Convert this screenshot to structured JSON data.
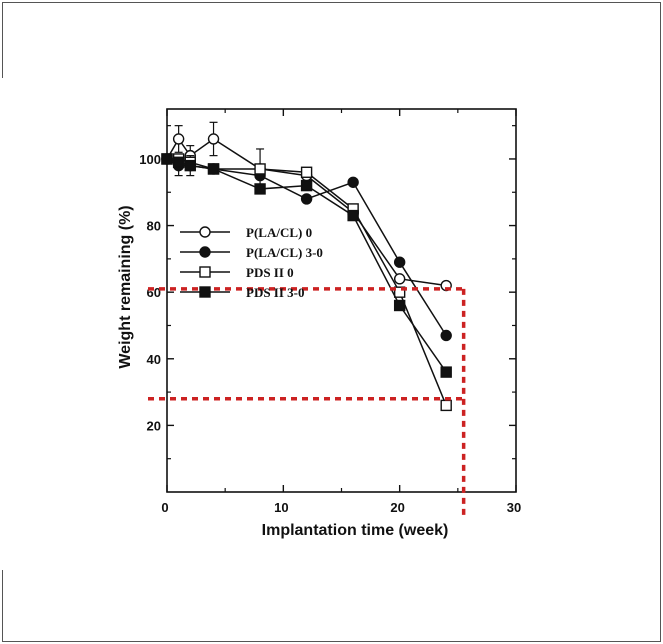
{
  "chart_data": {
    "type": "line",
    "xlabel": "Implantation time (week)",
    "ylabel": "Weight remaining (%)",
    "xlim": [
      0,
      30
    ],
    "ylim": [
      0,
      115
    ],
    "x_ticks": [
      "0",
      "10",
      "20",
      "30"
    ],
    "y_ticks": [
      "20",
      "40",
      "60",
      "80",
      "100"
    ],
    "legend_position": "middle-left",
    "series": [
      {
        "name": "P(LA/CL) 0",
        "marker": "open-circle",
        "x": [
          0,
          1,
          2,
          4,
          8,
          12,
          16,
          20,
          24
        ],
        "y": [
          100,
          106,
          101,
          106,
          97,
          95,
          84,
          64,
          62
        ],
        "err": [
          0,
          4,
          3,
          5,
          6,
          0,
          0,
          0,
          0
        ]
      },
      {
        "name": "P(LA/CL) 3-0",
        "marker": "filled-circle",
        "x": [
          0,
          1,
          2,
          4,
          8,
          12,
          16,
          20,
          24
        ],
        "y": [
          100,
          98,
          98,
          97,
          95,
          88,
          93,
          69,
          47
        ],
        "err": [
          0,
          3,
          3,
          0,
          0,
          0,
          0,
          0,
          0
        ]
      },
      {
        "name": "PDS II 0",
        "marker": "open-square",
        "x": [
          0,
          1,
          2,
          4,
          8,
          12,
          16,
          20,
          24
        ],
        "y": [
          100,
          100,
          99,
          97,
          97,
          96,
          85,
          60,
          26
        ],
        "err": [
          0,
          0,
          0,
          0,
          0,
          0,
          0,
          0,
          0
        ]
      },
      {
        "name": "PDS II 3-0",
        "marker": "filled-square",
        "x": [
          0,
          1,
          2,
          4,
          8,
          12,
          16,
          20,
          24
        ],
        "y": [
          100,
          99,
          98,
          97,
          91,
          92,
          83,
          56,
          36
        ],
        "err": [
          0,
          0,
          0,
          0,
          0,
          0,
          0,
          0,
          0
        ]
      }
    ],
    "reference_lines": {
      "color": "#cc2222",
      "horizontal_y": [
        61,
        28
      ],
      "vertical_x": [
        25.5
      ],
      "style": "dotted"
    }
  }
}
